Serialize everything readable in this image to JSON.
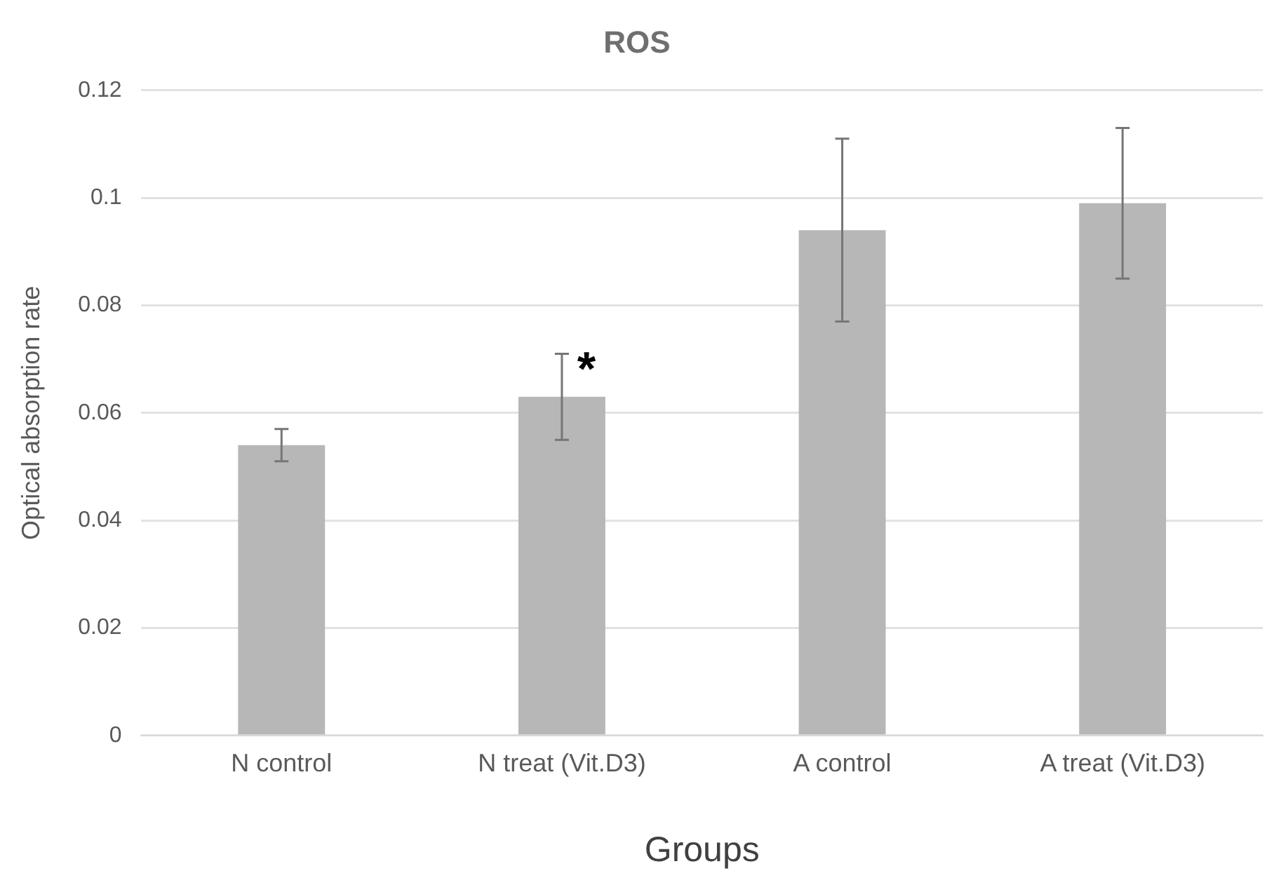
{
  "chart_data": {
    "type": "bar",
    "title": "ROS",
    "xlabel": "Groups",
    "ylabel": "Optical absorption rate",
    "categories": [
      "N control",
      "N treat (Vit.D3)",
      "A control",
      "A treat (Vit.D3)"
    ],
    "values": [
      0.054,
      0.063,
      0.094,
      0.099
    ],
    "color": "#b7b7b7",
    "errors": [
      0.003,
      0.008,
      0.017,
      0.014
    ],
    "ylim": [
      0,
      0.12
    ],
    "yticks": [
      0,
      0.02,
      0.04,
      0.06,
      0.08,
      0.1,
      0.12
    ],
    "grid": "y",
    "annotations": [
      "*"
    ]
  }
}
